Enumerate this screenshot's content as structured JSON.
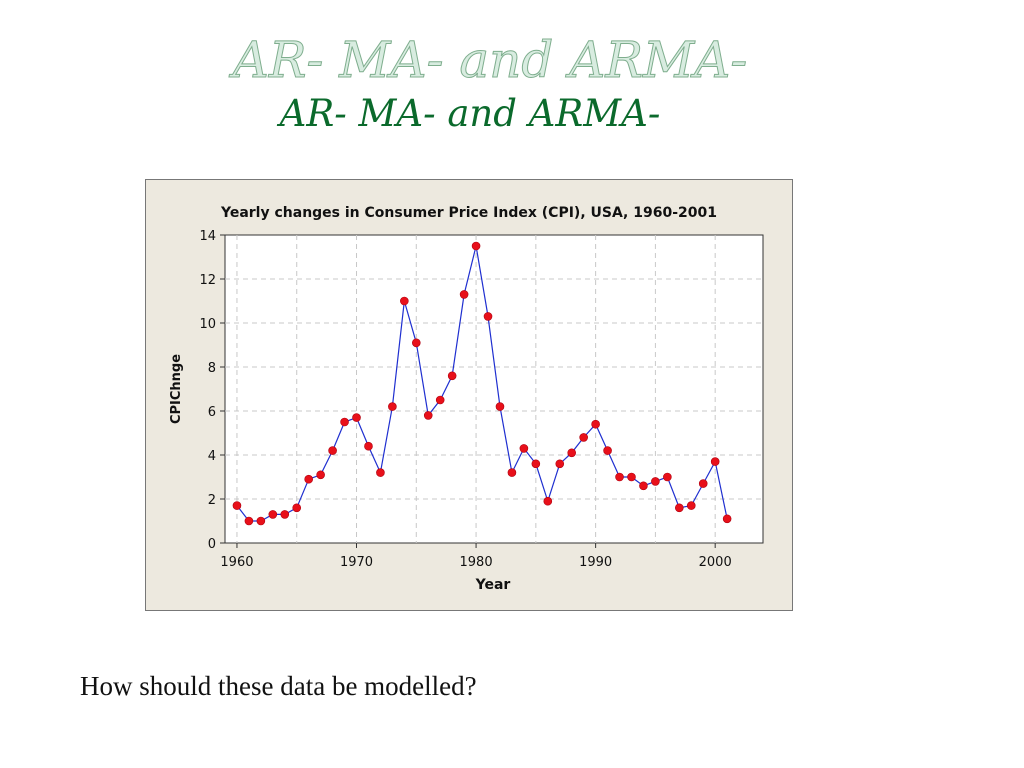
{
  "slide": {
    "title_shadow": "AR- MA- and ARMA-",
    "title": "AR- MA- and ARMA-",
    "caption": "How should these data be modelled?"
  },
  "colors": {
    "title_green": "#0b6a2c",
    "chart_background": "#ede9df",
    "plot_background": "#ffffff",
    "line": "#1f2fd0",
    "marker": "#e8101a",
    "grid": "#c8c8c8"
  },
  "chart_data": {
    "type": "line",
    "title": "Yearly changes in Consumer Price Index (CPI), USA, 1960-2001",
    "xlabel": "Year",
    "ylabel": "CPIChnge",
    "xlim": [
      1959,
      2004
    ],
    "ylim": [
      0,
      14
    ],
    "xticks": [
      1960,
      1970,
      1980,
      1990,
      2000
    ],
    "yticks": [
      0,
      2,
      4,
      6,
      8,
      10,
      12,
      14
    ],
    "grid": true,
    "series": [
      {
        "name": "CPIChnge",
        "x": [
          1960,
          1961,
          1962,
          1963,
          1964,
          1965,
          1966,
          1967,
          1968,
          1969,
          1970,
          1971,
          1972,
          1973,
          1974,
          1975,
          1976,
          1977,
          1978,
          1979,
          1980,
          1981,
          1982,
          1983,
          1984,
          1985,
          1986,
          1987,
          1988,
          1989,
          1990,
          1991,
          1992,
          1993,
          1994,
          1995,
          1996,
          1997,
          1998,
          1999,
          2000,
          2001
        ],
        "values": [
          1.7,
          1.0,
          1.0,
          1.3,
          1.3,
          1.6,
          2.9,
          3.1,
          4.2,
          5.5,
          5.7,
          4.4,
          3.2,
          6.2,
          11.0,
          9.1,
          5.8,
          6.5,
          7.6,
          11.3,
          13.5,
          10.3,
          6.2,
          3.2,
          4.3,
          3.6,
          1.9,
          3.6,
          4.1,
          4.8,
          5.4,
          4.2,
          3.0,
          3.0,
          2.6,
          2.8,
          3.0,
          1.6,
          1.7,
          2.7,
          3.7,
          1.1
        ]
      }
    ]
  }
}
